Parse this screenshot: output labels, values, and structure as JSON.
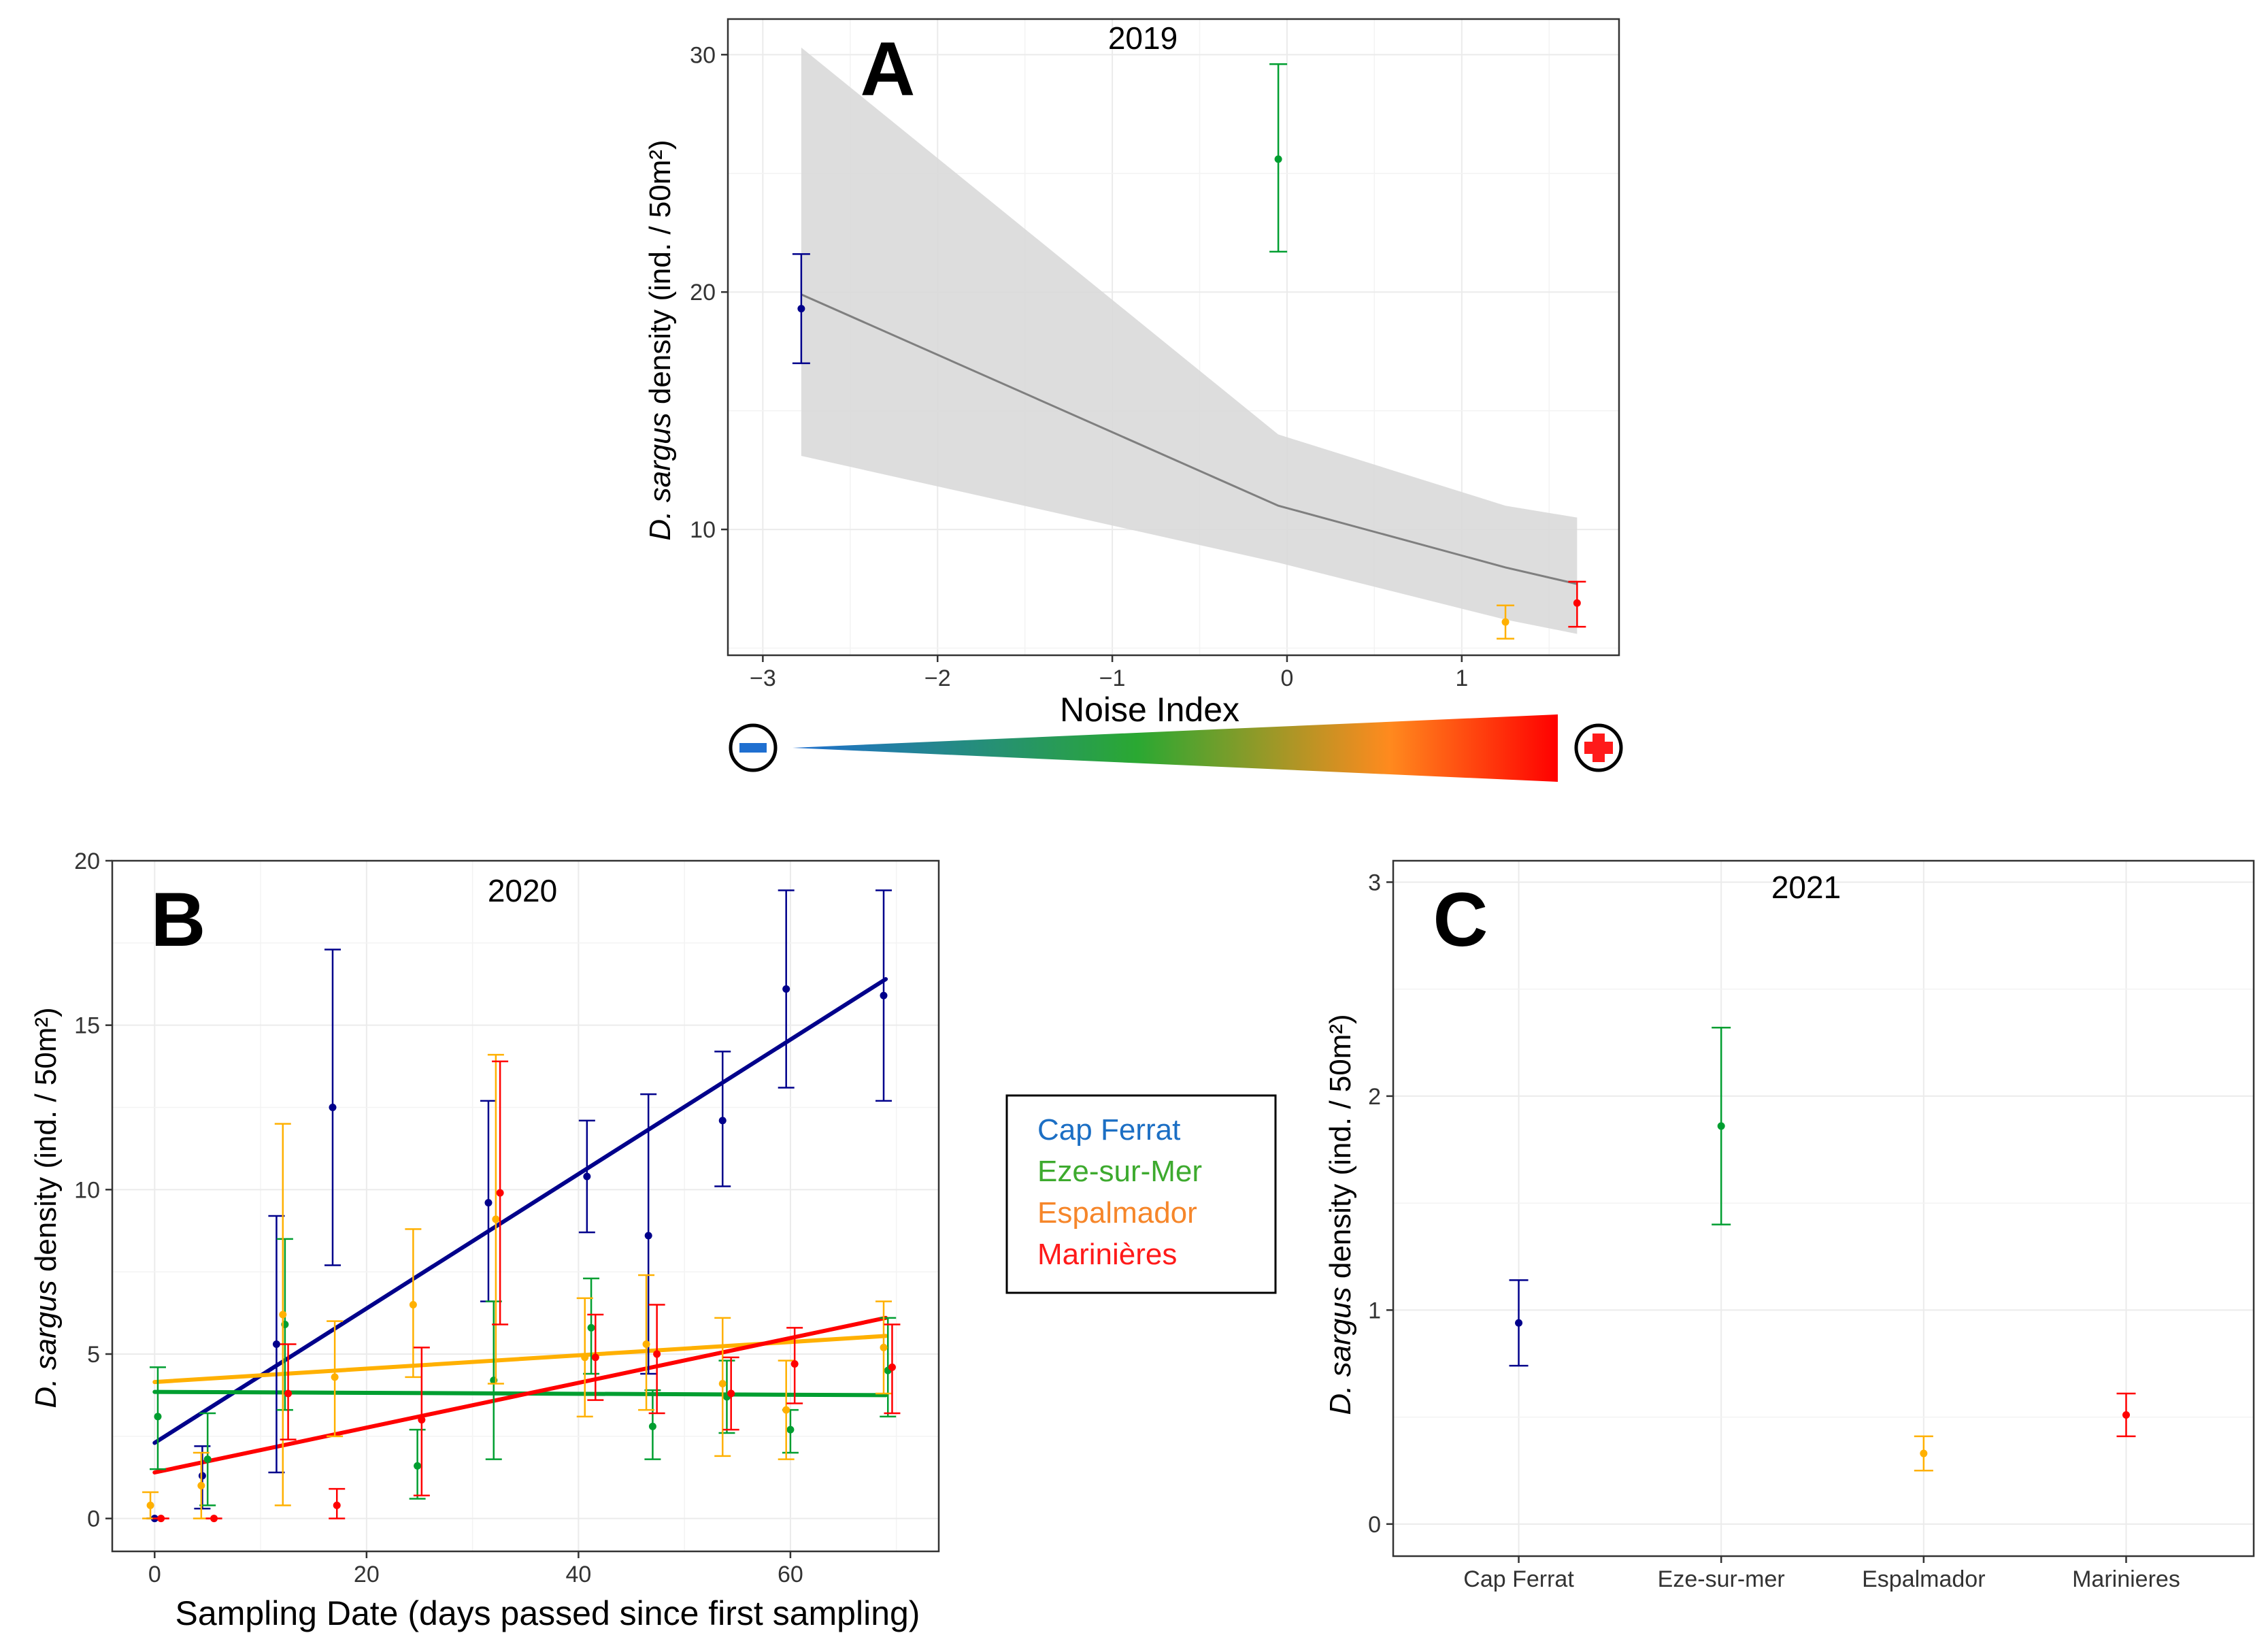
{
  "colors": {
    "cap_ferrat": "#00008B",
    "eze_sur_mer": "#009E30",
    "espalmador": "#FFB000",
    "marinieres": "#FF0000",
    "legend_cap_ferrat": "#1C6FC4",
    "legend_eze_sur_mer": "#3DAA2E",
    "legend_espalmador": "#F6862A",
    "legend_marinieres": "#FF1A1A",
    "fit_line_A": "#7f7f7f",
    "ci_band": "#d9d9d9"
  },
  "legend": {
    "items": [
      {
        "label": "Cap Ferrat",
        "color": "#1C6FC4"
      },
      {
        "label": "Eze-sur-Mer",
        "color": "#3DAA2E"
      },
      {
        "label": "Espalmador",
        "color": "#F6862A"
      },
      {
        "label": "Marinières",
        "color": "#FF1A1A"
      }
    ]
  },
  "noise_scale": {
    "minus_symbol": "minus-icon",
    "plus_symbol": "plus-icon",
    "gradient_colors": [
      "#1f6fd0",
      "#2aa832",
      "#ff8a1e",
      "#ff0000"
    ]
  },
  "chart_data": [
    {
      "panel": "A",
      "type": "scatter",
      "title": "2019",
      "xlabel": "Noise Index",
      "ylabel_italic": "D. sargus",
      "ylabel_rest": " density (ind. / 50m²)",
      "xlim": [
        -3.2,
        1.9
      ],
      "ylim": [
        4.7,
        31.5
      ],
      "xticks": [
        -3,
        -2,
        -1,
        0,
        1
      ],
      "xtick_labels": [
        "−3",
        "−2",
        "−1",
        "0",
        "1"
      ],
      "yticks": [
        10,
        20,
        30
      ],
      "points": [
        {
          "site": "Cap Ferrat",
          "x": -2.78,
          "y": 19.3,
          "ymin": 17.0,
          "ymax": 21.6
        },
        {
          "site": "Eze-sur-Mer",
          "x": -0.05,
          "y": 25.6,
          "ymin": 21.7,
          "ymax": 29.6
        },
        {
          "site": "Espalmador",
          "x": 1.25,
          "y": 6.1,
          "ymin": 5.4,
          "ymax": 6.8
        },
        {
          "site": "Marinières",
          "x": 1.66,
          "y": 6.9,
          "ymin": 5.9,
          "ymax": 7.8
        }
      ],
      "fit": {
        "x": [
          -2.78,
          -0.05,
          1.25,
          1.66
        ],
        "y": [
          19.9,
          11.0,
          8.4,
          7.7
        ],
        "lower": [
          13.1,
          8.6,
          6.2,
          5.6
        ],
        "upper": [
          30.3,
          14.0,
          11.0,
          10.5
        ]
      }
    },
    {
      "panel": "B",
      "type": "scatter",
      "title": "2020",
      "xlabel": "Sampling Date (days passed since first sampling)",
      "ylabel_italic": "D. sargus",
      "ylabel_rest": " density (ind. / 50m²)",
      "xlim": [
        -4,
        74
      ],
      "ylim": [
        -1,
        20
      ],
      "xticks": [
        0,
        20,
        40,
        60
      ],
      "yticks": [
        0,
        5,
        10,
        15,
        20
      ],
      "series": [
        {
          "name": "Cap Ferrat",
          "points": [
            {
              "x": 0,
              "y": 0.0,
              "ymin": 0.0,
              "ymax": 0.0
            },
            {
              "x": 4.5,
              "y": 1.3,
              "ymin": 0.3,
              "ymax": 2.2
            },
            {
              "x": 11.5,
              "y": 5.3,
              "ymin": 1.4,
              "ymax": 9.2
            },
            {
              "x": 16.8,
              "y": 12.5,
              "ymin": 7.7,
              "ymax": 17.3
            },
            {
              "x": 31.5,
              "y": 9.6,
              "ymin": 6.6,
              "ymax": 12.7
            },
            {
              "x": 40.8,
              "y": 10.4,
              "ymin": 8.7,
              "ymax": 12.1
            },
            {
              "x": 46.6,
              "y": 8.6,
              "ymin": 4.4,
              "ymax": 12.9
            },
            {
              "x": 53.6,
              "y": 12.1,
              "ymin": 10.1,
              "ymax": 14.2
            },
            {
              "x": 59.6,
              "y": 16.1,
              "ymin": 13.1,
              "ymax": 19.1
            },
            {
              "x": 68.8,
              "y": 15.9,
              "ymin": 12.7,
              "ymax": 19.1
            }
          ],
          "fit": {
            "x": [
              0,
              69
            ],
            "y": [
              2.3,
              16.4
            ]
          }
        },
        {
          "name": "Eze-sur-Mer",
          "points": [
            {
              "x": 0.3,
              "y": 3.1,
              "ymin": 1.5,
              "ymax": 4.6
            },
            {
              "x": 5.0,
              "y": 1.8,
              "ymin": 0.4,
              "ymax": 3.2
            },
            {
              "x": 12.3,
              "y": 5.9,
              "ymin": 3.3,
              "ymax": 8.5
            },
            {
              "x": 24.8,
              "y": 1.6,
              "ymin": 0.6,
              "ymax": 2.7
            },
            {
              "x": 32.0,
              "y": 4.2,
              "ymin": 1.8,
              "ymax": 6.6
            },
            {
              "x": 41.2,
              "y": 5.8,
              "ymin": 4.4,
              "ymax": 7.3
            },
            {
              "x": 47.0,
              "y": 2.8,
              "ymin": 1.8,
              "ymax": 3.9
            },
            {
              "x": 54.0,
              "y": 3.7,
              "ymin": 2.6,
              "ymax": 4.8
            },
            {
              "x": 60.0,
              "y": 2.7,
              "ymin": 2.0,
              "ymax": 3.3
            },
            {
              "x": 69.2,
              "y": 4.5,
              "ymin": 3.1,
              "ymax": 6.1
            }
          ],
          "fit": {
            "x": [
              0,
              69
            ],
            "y": [
              3.85,
              3.75
            ]
          }
        },
        {
          "name": "Espalmador",
          "points": [
            {
              "x": -0.4,
              "y": 0.4,
              "ymin": 0.0,
              "ymax": 0.8
            },
            {
              "x": 4.4,
              "y": 1.0,
              "ymin": 0.0,
              "ymax": 2.0
            },
            {
              "x": 12.1,
              "y": 6.2,
              "ymin": 0.4,
              "ymax": 12.0
            },
            {
              "x": 17.0,
              "y": 4.3,
              "ymin": 2.5,
              "ymax": 6.0
            },
            {
              "x": 24.4,
              "y": 6.5,
              "ymin": 4.3,
              "ymax": 8.8
            },
            {
              "x": 32.2,
              "y": 9.1,
              "ymin": 4.1,
              "ymax": 14.1
            },
            {
              "x": 40.6,
              "y": 4.9,
              "ymin": 3.1,
              "ymax": 6.7
            },
            {
              "x": 46.4,
              "y": 5.3,
              "ymin": 3.3,
              "ymax": 7.4
            },
            {
              "x": 53.6,
              "y": 4.1,
              "ymin": 1.9,
              "ymax": 6.1
            },
            {
              "x": 59.6,
              "y": 3.3,
              "ymin": 1.8,
              "ymax": 4.8
            },
            {
              "x": 68.8,
              "y": 5.2,
              "ymin": 3.8,
              "ymax": 6.6
            }
          ],
          "fit": {
            "x": [
              0,
              69
            ],
            "y": [
              4.15,
              5.55
            ]
          }
        },
        {
          "name": "Marinières",
          "points": [
            {
              "x": 0.6,
              "y": 0.0,
              "ymin": 0.0,
              "ymax": 0.0
            },
            {
              "x": 5.6,
              "y": 0.0,
              "ymin": 0.0,
              "ymax": 0.0
            },
            {
              "x": 12.6,
              "y": 3.8,
              "ymin": 2.4,
              "ymax": 5.3
            },
            {
              "x": 17.2,
              "y": 0.4,
              "ymin": 0.0,
              "ymax": 0.9
            },
            {
              "x": 25.2,
              "y": 3.0,
              "ymin": 0.7,
              "ymax": 5.2
            },
            {
              "x": 32.6,
              "y": 9.9,
              "ymin": 5.9,
              "ymax": 13.9
            },
            {
              "x": 41.6,
              "y": 4.9,
              "ymin": 3.6,
              "ymax": 6.2
            },
            {
              "x": 47.4,
              "y": 5.0,
              "ymin": 3.2,
              "ymax": 6.5
            },
            {
              "x": 54.4,
              "y": 3.8,
              "ymin": 2.7,
              "ymax": 4.9
            },
            {
              "x": 60.4,
              "y": 4.7,
              "ymin": 3.5,
              "ymax": 5.8
            },
            {
              "x": 69.6,
              "y": 4.6,
              "ymin": 3.2,
              "ymax": 5.9
            }
          ],
          "fit": {
            "x": [
              0,
              69
            ],
            "y": [
              1.4,
              6.1
            ]
          }
        }
      ]
    },
    {
      "panel": "C",
      "type": "scatter",
      "title": "2021",
      "xlabel": "",
      "ylabel_italic": "D. sargus",
      "ylabel_rest": " density (ind. / 50m²)",
      "categories": [
        "Cap Ferrat",
        "Eze-sur-mer",
        "Espalmador",
        "Marinieres"
      ],
      "ylim": [
        -0.15,
        3.1
      ],
      "yticks": [
        0,
        1,
        2,
        3
      ],
      "points": [
        {
          "site": "Cap Ferrat",
          "y": 0.94,
          "ymin": 0.74,
          "ymax": 1.14
        },
        {
          "site": "Eze-sur-Mer",
          "y": 1.86,
          "ymin": 1.4,
          "ymax": 2.32
        },
        {
          "site": "Espalmador",
          "y": 0.33,
          "ymin": 0.25,
          "ymax": 0.41
        },
        {
          "site": "Marinières",
          "y": 0.51,
          "ymin": 0.41,
          "ymax": 0.61
        }
      ]
    }
  ],
  "panel_letters": [
    "A",
    "B",
    "C"
  ]
}
